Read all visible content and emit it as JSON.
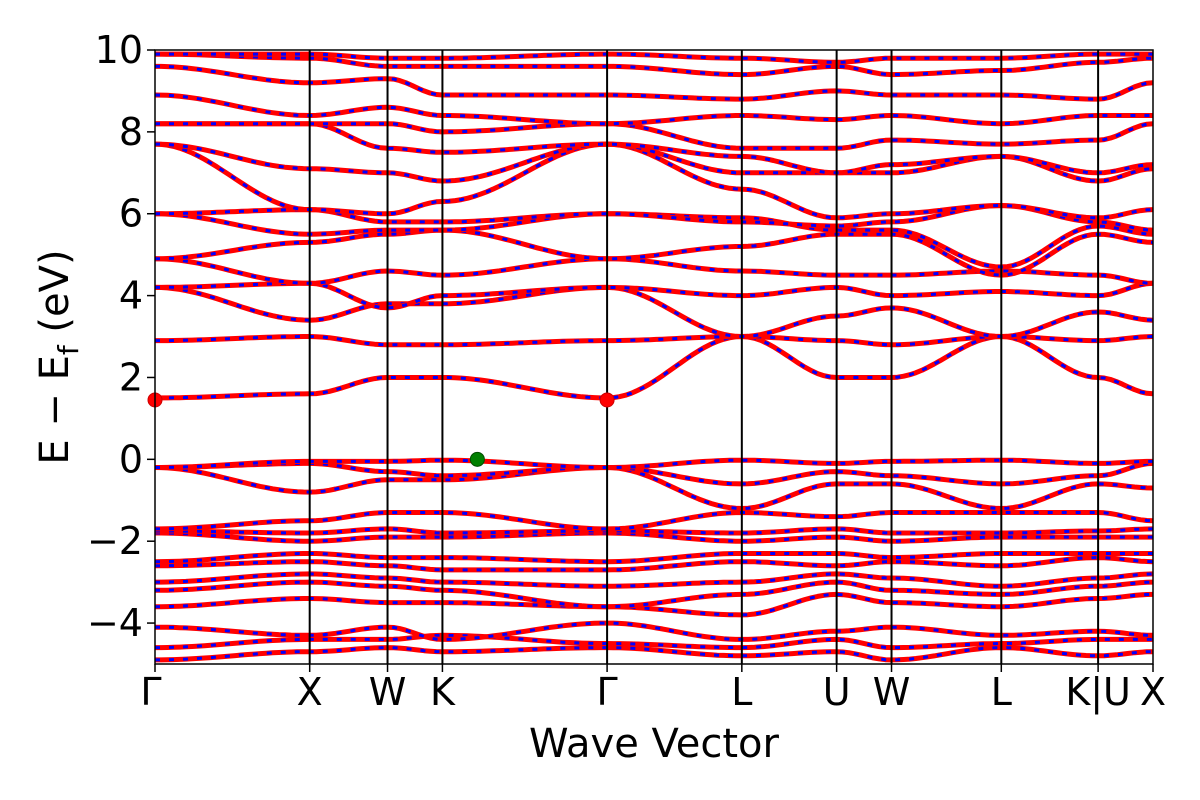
{
  "chart_data": {
    "type": "line",
    "title": "",
    "xlabel": "Wave Vector",
    "ylabel": "E − E_f (eV)",
    "ylabel_parts": {
      "main": "E − E",
      "sub": "f",
      "unit": " (eV)"
    },
    "ylim": [
      -5,
      10
    ],
    "yticks": [
      10,
      8,
      6,
      4,
      2,
      0,
      -2,
      -4
    ],
    "ytick_labels": [
      "10",
      "8",
      "6",
      "4",
      "2",
      "0",
      "−2",
      "−4"
    ],
    "x_range": [
      0,
      1
    ],
    "kpoints": [
      {
        "label": "Γ",
        "x": 0.0
      },
      {
        "label": "X",
        "x": 0.155
      },
      {
        "label": "W",
        "x": 0.233
      },
      {
        "label": "K",
        "x": 0.288
      },
      {
        "label": "Γ",
        "x": 0.453
      },
      {
        "label": "L",
        "x": 0.588
      },
      {
        "label": "U",
        "x": 0.683
      },
      {
        "label": "W",
        "x": 0.738
      },
      {
        "label": "L",
        "x": 0.848
      },
      {
        "label": "K|U",
        "x": 0.945
      },
      {
        "label": "X",
        "x": 1.0
      }
    ],
    "series_colors": {
      "primary": "#ff0000",
      "secondary": "#0000ff"
    },
    "band_nodes": [
      [
        -4.9,
        -4.7,
        -4.6,
        -4.7,
        -4.6,
        -4.8,
        -4.7,
        -4.9,
        -4.6,
        -4.8,
        -4.7
      ],
      [
        -4.6,
        -4.4,
        -4.4,
        -4.3,
        -4.5,
        -4.6,
        -4.4,
        -4.6,
        -4.5,
        -4.4,
        -4.4
      ],
      [
        -4.1,
        -4.3,
        -4.1,
        -4.4,
        -4.0,
        -4.4,
        -4.2,
        -4.1,
        -4.3,
        -4.2,
        -4.3
      ],
      [
        -3.6,
        -3.4,
        -3.5,
        -3.5,
        -3.6,
        -3.8,
        -3.3,
        -3.5,
        -3.6,
        -3.4,
        -3.3
      ],
      [
        -3.2,
        -3.0,
        -3.1,
        -3.2,
        -3.6,
        -3.3,
        -3.0,
        -3.2,
        -3.3,
        -3.1,
        -3.0
      ],
      [
        -3.0,
        -2.8,
        -2.9,
        -3.0,
        -3.1,
        -3.0,
        -2.8,
        -2.9,
        -3.1,
        -2.9,
        -2.8
      ],
      [
        -2.6,
        -2.5,
        -2.6,
        -2.7,
        -2.7,
        -2.5,
        -2.6,
        -2.5,
        -2.6,
        -2.4,
        -2.5
      ],
      [
        -2.5,
        -2.3,
        -2.4,
        -2.4,
        -2.5,
        -2.3,
        -2.3,
        -2.4,
        -2.3,
        -2.3,
        -2.3
      ],
      [
        -1.8,
        -2.0,
        -1.9,
        -1.9,
        -1.8,
        -2.0,
        -1.9,
        -2.0,
        -1.9,
        -1.9,
        -1.9
      ],
      [
        -1.75,
        -1.8,
        -1.7,
        -1.8,
        -1.75,
        -1.8,
        -1.7,
        -1.8,
        -1.8,
        -1.75,
        -1.7
      ],
      [
        -1.7,
        -1.5,
        -1.3,
        -1.3,
        -1.7,
        -1.3,
        -1.4,
        -1.3,
        -1.3,
        -1.3,
        -1.5
      ],
      [
        -0.2,
        -0.8,
        -0.5,
        -0.5,
        -0.2,
        -1.2,
        -0.6,
        -0.6,
        -1.2,
        -0.6,
        -0.7
      ],
      [
        -0.2,
        -0.1,
        -0.3,
        -0.4,
        -0.2,
        -0.6,
        -0.3,
        -0.4,
        -0.6,
        -0.4,
        -0.1
      ],
      [
        -0.2,
        -0.05,
        -0.05,
        -0.02,
        -0.2,
        -0.02,
        -0.1,
        -0.05,
        -0.02,
        -0.1,
        -0.05
      ],
      [
        1.5,
        1.6,
        2.0,
        2.0,
        1.5,
        3.0,
        2.0,
        2.0,
        3.0,
        2.0,
        1.6
      ],
      [
        2.9,
        3.0,
        2.8,
        2.8,
        2.9,
        3.0,
        2.9,
        2.8,
        3.0,
        2.9,
        3.0
      ],
      [
        4.2,
        3.4,
        3.8,
        3.8,
        4.2,
        3.0,
        3.5,
        3.7,
        3.0,
        3.6,
        3.4
      ],
      [
        4.2,
        4.3,
        3.7,
        4.0,
        4.2,
        4.0,
        4.2,
        4.0,
        4.1,
        4.0,
        4.3
      ],
      [
        4.9,
        4.3,
        4.6,
        4.5,
        4.9,
        4.6,
        4.5,
        4.5,
        4.6,
        4.5,
        4.3
      ],
      [
        4.9,
        5.3,
        5.5,
        5.6,
        4.9,
        5.2,
        5.5,
        5.5,
        4.5,
        5.5,
        5.3
      ],
      [
        6.0,
        5.5,
        5.6,
        5.6,
        6.0,
        5.9,
        5.6,
        5.6,
        4.7,
        5.7,
        5.5
      ],
      [
        6.0,
        6.1,
        5.8,
        5.8,
        6.0,
        5.8,
        5.7,
        5.8,
        6.2,
        5.8,
        5.6
      ],
      [
        7.7,
        6.1,
        6.0,
        6.3,
        7.7,
        6.6,
        5.9,
        6.0,
        6.2,
        5.9,
        6.1
      ],
      [
        7.7,
        7.1,
        7.0,
        6.8,
        7.7,
        7.0,
        7.0,
        7.0,
        7.4,
        6.8,
        7.1
      ],
      [
        8.2,
        8.2,
        7.6,
        7.5,
        7.7,
        7.4,
        7.0,
        7.2,
        7.4,
        7.0,
        7.2
      ],
      [
        8.2,
        8.2,
        8.2,
        8.0,
        8.2,
        7.6,
        7.6,
        7.8,
        7.7,
        7.8,
        8.2
      ],
      [
        8.9,
        8.4,
        8.6,
        8.4,
        8.2,
        8.4,
        8.3,
        8.4,
        8.2,
        8.4,
        8.4
      ],
      [
        9.6,
        9.2,
        9.3,
        8.9,
        8.9,
        8.8,
        9.0,
        8.9,
        8.9,
        8.8,
        9.2
      ],
      [
        9.9,
        9.8,
        9.6,
        9.6,
        9.6,
        9.4,
        9.6,
        9.4,
        9.5,
        9.7,
        9.8
      ],
      [
        9.9,
        9.9,
        9.8,
        9.8,
        9.9,
        9.8,
        9.7,
        9.8,
        9.8,
        9.9,
        9.9
      ]
    ],
    "markers": [
      {
        "name": "cbm",
        "color": "#ff0000",
        "x": 0.0,
        "y": 1.45
      },
      {
        "name": "cbm",
        "color": "#ff0000",
        "x": 0.453,
        "y": 1.45
      },
      {
        "name": "vbm",
        "color": "#008000",
        "x": 0.323,
        "y": 0.0
      }
    ]
  }
}
